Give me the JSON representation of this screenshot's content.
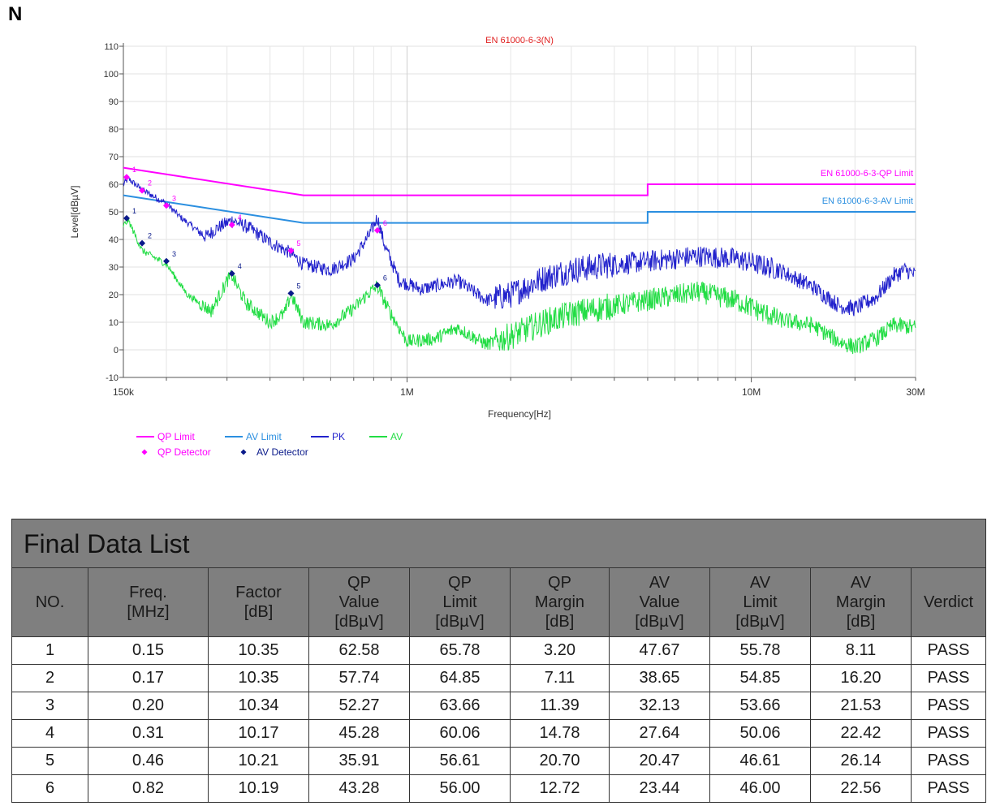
{
  "page_label": "N",
  "chart_data": {
    "type": "line",
    "title": "EN 61000-6-3(N)",
    "xlabel": "Frequency[Hz]",
    "ylabel": "Level[dBµV]",
    "xscale": "log",
    "xlim": [
      150000,
      30000000
    ],
    "ylim": [
      -10,
      110
    ],
    "yticks": [
      -10,
      0,
      10,
      20,
      30,
      40,
      50,
      60,
      70,
      80,
      90,
      100,
      110
    ],
    "xtick_labels": [
      {
        "value": 150000,
        "label": "150k"
      },
      {
        "value": 1000000,
        "label": "1M"
      },
      {
        "value": 10000000,
        "label": "10M"
      },
      {
        "value": 30000000,
        "label": "30M"
      }
    ],
    "grid": true,
    "legend_position": "bottom-left",
    "colors": {
      "qp": "#ff00ff",
      "av_limit": "#2b8fe0",
      "pk": "#2222cc",
      "av": "#22dd44",
      "title": "#e02020"
    },
    "series": [
      {
        "name": "QP Limit",
        "color": "#ff00ff",
        "label": "EN 61000-6-3-QP Limit",
        "points": [
          [
            150000,
            66
          ],
          [
            500000,
            56
          ],
          [
            5000000,
            56
          ],
          [
            5000000,
            60
          ],
          [
            30000000,
            60
          ]
        ]
      },
      {
        "name": "AV Limit",
        "color": "#2b8fe0",
        "label": "EN 61000-6-3-AV Limit",
        "points": [
          [
            150000,
            56
          ],
          [
            500000,
            46
          ],
          [
            5000000,
            46
          ],
          [
            5000000,
            50
          ],
          [
            30000000,
            50
          ]
        ]
      },
      {
        "name": "PK",
        "color": "#2222cc",
        "points": [
          [
            150000,
            60
          ],
          [
            155000,
            62
          ],
          [
            170000,
            58
          ],
          [
            200000,
            53
          ],
          [
            220000,
            48
          ],
          [
            260000,
            41
          ],
          [
            280000,
            44
          ],
          [
            310000,
            47
          ],
          [
            350000,
            44
          ],
          [
            400000,
            39
          ],
          [
            460000,
            35
          ],
          [
            500000,
            31
          ],
          [
            600000,
            29
          ],
          [
            700000,
            33
          ],
          [
            780000,
            42
          ],
          [
            820000,
            48
          ],
          [
            860000,
            38
          ],
          [
            950000,
            25
          ],
          [
            1100000,
            22
          ],
          [
            1400000,
            25
          ],
          [
            1700000,
            18
          ],
          [
            2000000,
            20
          ],
          [
            2500000,
            26
          ],
          [
            3000000,
            29
          ],
          [
            4000000,
            31
          ],
          [
            5000000,
            32
          ],
          [
            7000000,
            34
          ],
          [
            9000000,
            33
          ],
          [
            12000000,
            29
          ],
          [
            15000000,
            23
          ],
          [
            18000000,
            16
          ],
          [
            20000000,
            15
          ],
          [
            23000000,
            19
          ],
          [
            26000000,
            27
          ],
          [
            28000000,
            29
          ],
          [
            30000000,
            27
          ]
        ]
      },
      {
        "name": "AV",
        "color": "#22dd44",
        "points": [
          [
            150000,
            45
          ],
          [
            155000,
            47
          ],
          [
            170000,
            36
          ],
          [
            200000,
            31
          ],
          [
            230000,
            20
          ],
          [
            270000,
            14
          ],
          [
            300000,
            25
          ],
          [
            310000,
            27
          ],
          [
            340000,
            17
          ],
          [
            400000,
            10
          ],
          [
            440000,
            13
          ],
          [
            460000,
            20
          ],
          [
            500000,
            10
          ],
          [
            600000,
            9
          ],
          [
            700000,
            15
          ],
          [
            780000,
            21
          ],
          [
            820000,
            23
          ],
          [
            880000,
            15
          ],
          [
            1000000,
            3
          ],
          [
            1200000,
            4
          ],
          [
            1400000,
            8
          ],
          [
            1700000,
            2
          ],
          [
            2000000,
            5
          ],
          [
            2500000,
            10
          ],
          [
            3000000,
            13
          ],
          [
            4000000,
            16
          ],
          [
            5000000,
            18
          ],
          [
            7000000,
            21
          ],
          [
            9000000,
            18
          ],
          [
            12000000,
            11
          ],
          [
            15000000,
            9
          ],
          [
            18000000,
            3
          ],
          [
            20000000,
            1
          ],
          [
            23000000,
            4
          ],
          [
            26000000,
            9
          ],
          [
            30000000,
            8
          ]
        ]
      }
    ],
    "markers": {
      "qp_detector": {
        "name": "QP Detector",
        "color": "#ff00ff",
        "points": [
          [
            150000,
            62.58
          ],
          [
            170000,
            57.74
          ],
          [
            200000,
            52.27
          ],
          [
            310000,
            45.28
          ],
          [
            460000,
            35.91
          ],
          [
            820000,
            43.28
          ]
        ]
      },
      "av_detector": {
        "name": "AV Detector",
        "color": "#0a1a8a",
        "points": [
          [
            150000,
            47.67
          ],
          [
            170000,
            38.65
          ],
          [
            200000,
            32.13
          ],
          [
            310000,
            27.64
          ],
          [
            460000,
            20.47
          ],
          [
            820000,
            23.44
          ]
        ]
      }
    },
    "marker_labels": [
      "1",
      "2",
      "3",
      "4",
      "5",
      "6"
    ]
  },
  "table": {
    "title": "Final Data List",
    "headers": [
      [
        "NO."
      ],
      [
        "Freq.",
        "[MHz]"
      ],
      [
        "Factor",
        "[dB]"
      ],
      [
        "QP",
        "Value",
        "[dBµV]"
      ],
      [
        "QP",
        "Limit",
        "[dBµV]"
      ],
      [
        "QP",
        "Margin",
        "[dB]"
      ],
      [
        "AV",
        "Value",
        "[dBµV]"
      ],
      [
        "AV",
        "Limit",
        "[dBµV]"
      ],
      [
        "AV",
        "Margin",
        "[dB]"
      ],
      [
        "Verdict"
      ]
    ],
    "rows": [
      [
        "1",
        "0.15",
        "10.35",
        "62.58",
        "65.78",
        "3.20",
        "47.67",
        "55.78",
        "8.11",
        "PASS"
      ],
      [
        "2",
        "0.17",
        "10.35",
        "57.74",
        "64.85",
        "7.11",
        "38.65",
        "54.85",
        "16.20",
        "PASS"
      ],
      [
        "3",
        "0.20",
        "10.34",
        "52.27",
        "63.66",
        "11.39",
        "32.13",
        "53.66",
        "21.53",
        "PASS"
      ],
      [
        "4",
        "0.31",
        "10.17",
        "45.28",
        "60.06",
        "14.78",
        "27.64",
        "50.06",
        "22.42",
        "PASS"
      ],
      [
        "5",
        "0.46",
        "10.21",
        "35.91",
        "56.61",
        "20.70",
        "20.47",
        "46.61",
        "26.14",
        "PASS"
      ],
      [
        "6",
        "0.82",
        "10.19",
        "43.28",
        "56.00",
        "12.72",
        "23.44",
        "46.00",
        "22.56",
        "PASS"
      ]
    ]
  }
}
